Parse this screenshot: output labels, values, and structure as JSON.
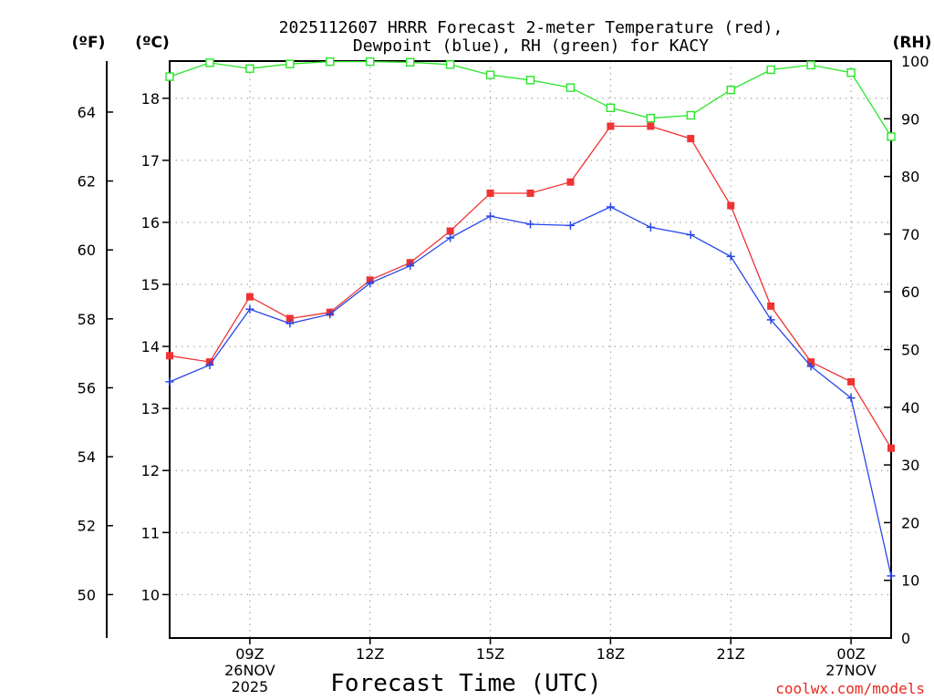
{
  "chart_data": {
    "type": "line",
    "title": "2025112607 HRRR Forecast 2-meter Temperature (red),",
    "subtitle": "Dewpoint (blue), RH (green) for KACY",
    "xlabel": "Forecast Time (UTC)",
    "credit": "coolwx.com/models",
    "units": {
      "left_f": "(ºF)",
      "left_c": "(ºC)",
      "right": "(RH)"
    },
    "x": [
      7,
      8,
      9,
      10,
      11,
      12,
      13,
      14,
      15,
      16,
      17,
      18,
      19,
      20,
      21,
      22,
      23,
      24,
      25
    ],
    "xlim": [
      7,
      25
    ],
    "x_ticks": [
      {
        "x": 9,
        "lines": [
          "09Z",
          "26NOV",
          "2025"
        ]
      },
      {
        "x": 12,
        "lines": [
          "12Z"
        ]
      },
      {
        "x": 15,
        "lines": [
          "15Z"
        ]
      },
      {
        "x": 18,
        "lines": [
          "18Z"
        ]
      },
      {
        "x": 21,
        "lines": [
          "21Z"
        ]
      },
      {
        "x": 24,
        "lines": [
          "00Z",
          "27NOV"
        ]
      }
    ],
    "ylim_c": [
      9.3,
      18.6
    ],
    "yticks_c": [
      10,
      11,
      12,
      13,
      14,
      15,
      16,
      17,
      18
    ],
    "yticks_f": [
      50,
      52,
      54,
      56,
      58,
      60,
      62,
      64
    ],
    "ylim_rh": [
      0,
      100
    ],
    "yticks_rh": [
      0,
      10,
      20,
      30,
      40,
      50,
      60,
      70,
      80,
      90,
      100
    ],
    "grid": true,
    "series": [
      {
        "name": "Temperature",
        "color": "#f03232",
        "marker": "square-filled",
        "axis": "c",
        "values": [
          13.85,
          13.75,
          14.8,
          14.45,
          14.55,
          15.07,
          15.35,
          15.86,
          16.47,
          16.47,
          16.65,
          17.55,
          17.55,
          17.35,
          16.27,
          14.65,
          13.75,
          13.43,
          12.36
        ]
      },
      {
        "name": "Dewpoint",
        "color": "#2846e6",
        "marker": "plus",
        "axis": "c",
        "values": [
          13.43,
          13.7,
          14.6,
          14.37,
          14.52,
          15.02,
          15.3,
          15.75,
          16.1,
          15.97,
          15.95,
          16.25,
          15.92,
          15.8,
          15.45,
          14.43,
          13.68,
          13.17,
          10.3
        ]
      },
      {
        "name": "RH",
        "color": "#28e628",
        "marker": "square-open",
        "axis": "rh",
        "values": [
          97.3,
          99.7,
          98.7,
          99.5,
          99.9,
          99.9,
          99.8,
          99.4,
          97.6,
          96.7,
          95.4,
          91.9,
          90.1,
          90.6,
          95.0,
          98.5,
          99.3,
          98.0,
          86.9
        ]
      }
    ]
  }
}
